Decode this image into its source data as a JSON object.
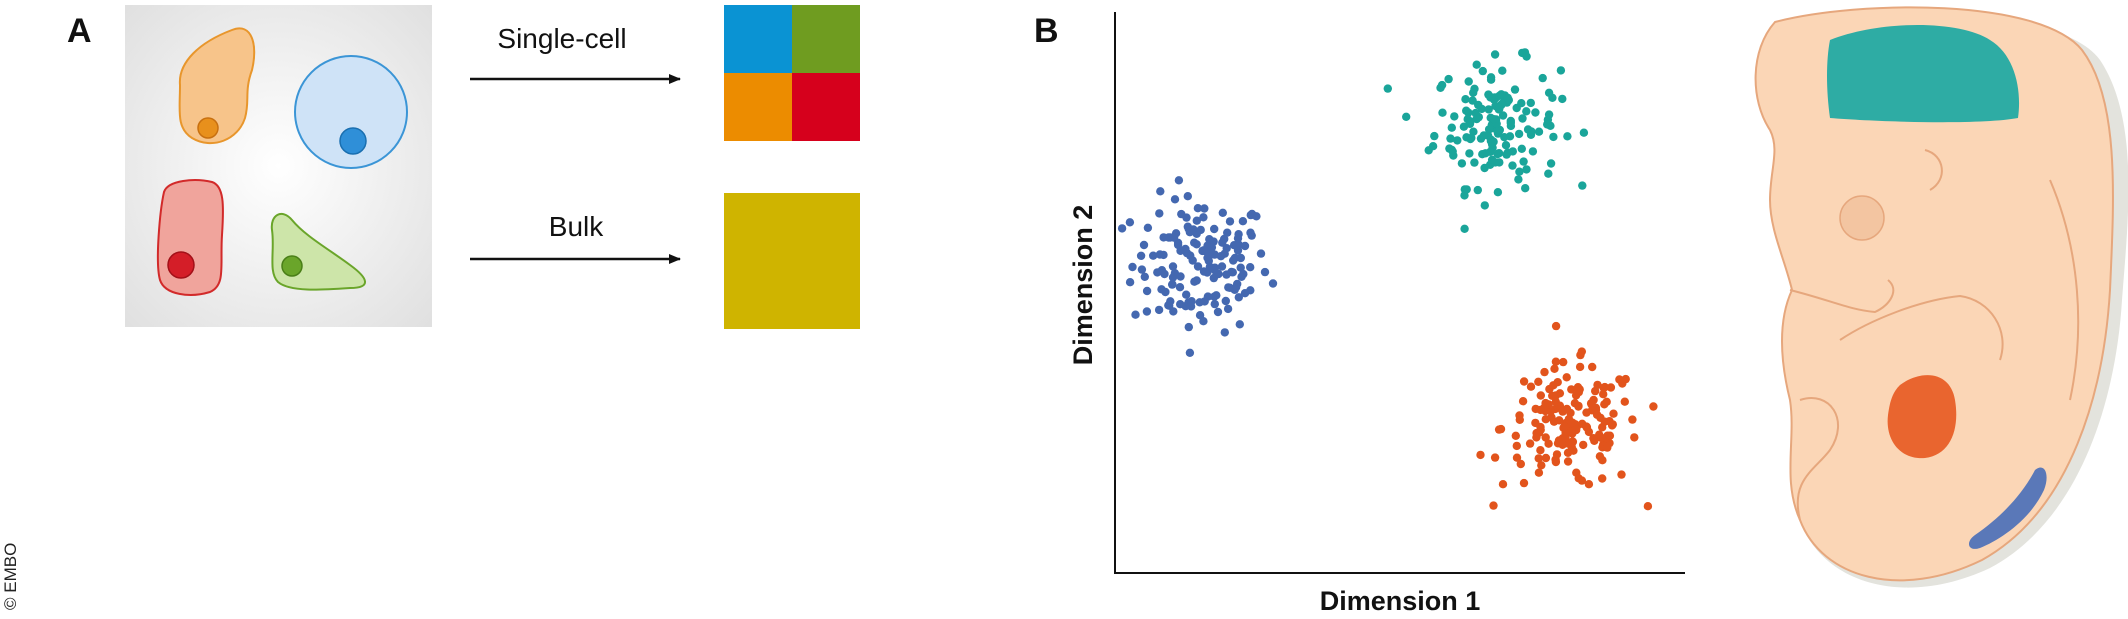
{
  "panel_a": {
    "label": "A",
    "single_cell_label": "Single-cell",
    "bulk_label": "Bulk",
    "cells": [
      {
        "name": "orange-cell",
        "color": "#f0a24a",
        "nucleus": "#e8901c"
      },
      {
        "name": "blue-cell",
        "color": "#a9cdf0",
        "nucleus": "#2f8fd8"
      },
      {
        "name": "red-cell",
        "color": "#ee8a84",
        "nucleus": "#d41e28"
      },
      {
        "name": "green-cell",
        "color": "#b5d68a",
        "nucleus": "#6aa52a"
      }
    ],
    "single_cell_colors": [
      "#0a93d3",
      "#6f9c20",
      "#ec8c00",
      "#d6001c"
    ],
    "bulk_color": "#cfb400"
  },
  "panel_b": {
    "label": "B",
    "chart_data": {
      "type": "scatter",
      "title": "",
      "xlabel": "Dimension 1",
      "ylabel": "Dimension 2",
      "xlim": [
        0,
        100
      ],
      "ylim": [
        0,
        100
      ],
      "grid": false,
      "series": [
        {
          "name": "blue cluster",
          "color": "#4468b0",
          "center": [
            15,
            55
          ],
          "spread": [
            6,
            6
          ],
          "n": 150
        },
        {
          "name": "teal cluster",
          "color": "#1aa59a",
          "center": [
            67,
            80
          ],
          "spread": [
            5.5,
            5.5
          ],
          "n": 150
        },
        {
          "name": "orange cluster",
          "color": "#e2541c",
          "center": [
            80,
            26
          ],
          "spread": [
            6,
            5.5
          ],
          "n": 160
        }
      ]
    },
    "embryo_colors": {
      "body": "#fbd6b6",
      "outline": "#e6a77d",
      "shadow": "#e3e3dd",
      "brain_region": "#2eaca4",
      "heart_region": "#e9652f",
      "tail_region": "#5a78b8"
    }
  },
  "copyright": "© EMBO"
}
